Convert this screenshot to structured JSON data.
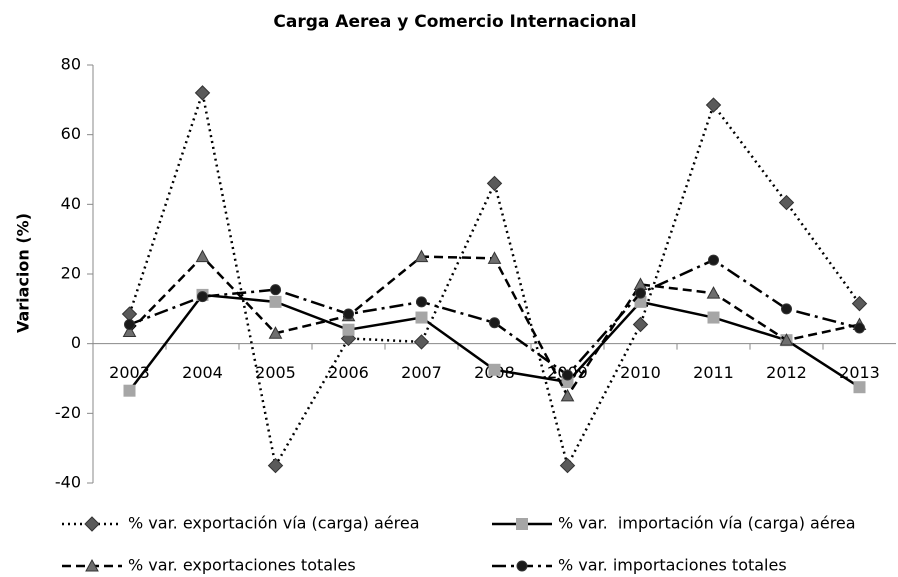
{
  "chart_data": {
    "type": "line",
    "title": "Carga Aerea y Comercio Internacional",
    "y_label": "Variacion (%)",
    "categories": [
      "2003",
      "2004",
      "2005",
      "2006",
      "2007",
      "2008",
      "2009",
      "2010",
      "2011",
      "2012",
      "2013"
    ],
    "ylim": [
      -40,
      80
    ],
    "yticks": [
      -40,
      -20,
      0,
      20,
      40,
      60,
      80
    ],
    "grid": false,
    "legend": "bottom",
    "series": [
      {
        "name": "% var. exportación vía (carga) aérea",
        "color": "#000000",
        "marker": "diamond",
        "marker_color": "#5a5a5a",
        "line_style": "dotted",
        "values": [
          8.5,
          72,
          -35,
          1.5,
          0.5,
          46,
          -35,
          5.5,
          68.5,
          40.5,
          11.5
        ]
      },
      {
        "name": "% var.  importación vía (carga) aérea",
        "color": "#000000",
        "marker": "square",
        "marker_color": "#a6a6a6",
        "line_style": "solid",
        "values": [
          -13.5,
          14,
          12,
          4,
          7.5,
          -7.5,
          -11,
          12,
          7.5,
          1,
          -12.5
        ]
      },
      {
        "name": "% var. exportaciones totales",
        "color": "#000000",
        "marker": "triangle",
        "marker_color": "#6e6e6e",
        "line_style": "dashed",
        "values": [
          3.5,
          25,
          3,
          8,
          25,
          24.5,
          -15,
          17,
          14.5,
          1,
          5.5
        ]
      },
      {
        "name": "% var. importaciones totales",
        "color": "#000000",
        "marker": "circle",
        "marker_color": "#1a1a1a",
        "line_style": "dashdot",
        "values": [
          5.5,
          13.5,
          15.5,
          8.5,
          12,
          6,
          -9,
          14.5,
          24,
          10,
          4.5
        ]
      }
    ]
  }
}
